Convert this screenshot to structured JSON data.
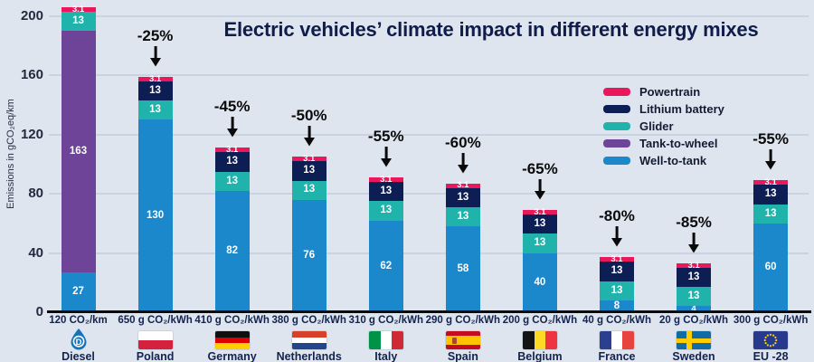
{
  "title": "Electric vehicles’ climate impact in different energy mixes",
  "y_axis": {
    "label": "Emissions in gCO₂eq/km",
    "ticks": [
      0,
      40,
      80,
      120,
      160,
      200
    ]
  },
  "colors": {
    "Powertrain": "#e9175c",
    "Lithium battery": "#0d1e55",
    "Glider": "#1fb3ab",
    "Tank-to-wheel": "#6d4497",
    "Well-to-tank": "#1a88ca"
  },
  "legend": [
    {
      "key": "Powertrain",
      "label": "Powertrain"
    },
    {
      "key": "Lithium battery",
      "label": "Lithium battery"
    },
    {
      "key": "Glider",
      "label": "Glider"
    },
    {
      "key": "Tank-to-wheel",
      "label": "Tank-to-wheel"
    },
    {
      "key": "Well-to-tank",
      "label": "Well-to-tank"
    }
  ],
  "chart_data": {
    "type": "bar",
    "stacked": true,
    "ylabel": "Emissions in gCO₂eq/km",
    "ylim": [
      0,
      200
    ],
    "grid": true,
    "legend_position": "right",
    "bars": [
      {
        "x_label": "120 CO₂/km",
        "country": "Diesel",
        "flag": "diesel",
        "reduction": null,
        "segments": [
          {
            "name": "Well-to-tank",
            "value": 27
          },
          {
            "name": "Tank-to-wheel",
            "value": 163
          },
          {
            "name": "Glider",
            "value": 13
          },
          {
            "name": "Powertrain",
            "value": 3.1
          }
        ]
      },
      {
        "x_label": "650 g CO₂/kWh",
        "country": "Poland",
        "flag": "poland",
        "reduction": "-25%",
        "segments": [
          {
            "name": "Well-to-tank",
            "value": 130
          },
          {
            "name": "Glider",
            "value": 13
          },
          {
            "name": "Lithium battery",
            "value": 13
          },
          {
            "name": "Powertrain",
            "value": 3.1
          }
        ]
      },
      {
        "x_label": "410 g CO₂/kWh",
        "country": "Germany",
        "flag": "germany",
        "reduction": "-45%",
        "segments": [
          {
            "name": "Well-to-tank",
            "value": 82
          },
          {
            "name": "Glider",
            "value": 13
          },
          {
            "name": "Lithium battery",
            "value": 13
          },
          {
            "name": "Powertrain",
            "value": 3.1
          }
        ]
      },
      {
        "x_label": "380 g CO₂/kWh",
        "country": "Netherlands",
        "flag": "netherlands",
        "reduction": "-50%",
        "segments": [
          {
            "name": "Well-to-tank",
            "value": 76
          },
          {
            "name": "Glider",
            "value": 13
          },
          {
            "name": "Lithium battery",
            "value": 13
          },
          {
            "name": "Powertrain",
            "value": 3.1
          }
        ]
      },
      {
        "x_label": "310 g CO₂/kWh",
        "country": "Italy",
        "flag": "italy",
        "reduction": "-55%",
        "segments": [
          {
            "name": "Well-to-tank",
            "value": 62
          },
          {
            "name": "Glider",
            "value": 13
          },
          {
            "name": "Lithium battery",
            "value": 13
          },
          {
            "name": "Powertrain",
            "value": 3.1
          }
        ]
      },
      {
        "x_label": "290 g CO₂/kWh",
        "country": "Spain",
        "flag": "spain",
        "reduction": "-60%",
        "segments": [
          {
            "name": "Well-to-tank",
            "value": 58
          },
          {
            "name": "Glider",
            "value": 13
          },
          {
            "name": "Lithium battery",
            "value": 13
          },
          {
            "name": "Powertrain",
            "value": 3.1
          }
        ]
      },
      {
        "x_label": "200 g CO₂/kWh",
        "country": "Belgium",
        "flag": "belgium",
        "reduction": "-65%",
        "segments": [
          {
            "name": "Well-to-tank",
            "value": 40
          },
          {
            "name": "Glider",
            "value": 13
          },
          {
            "name": "Lithium battery",
            "value": 13
          },
          {
            "name": "Powertrain",
            "value": 3.1
          }
        ]
      },
      {
        "x_label": "40 g CO₂/kWh",
        "country": "France",
        "flag": "france",
        "reduction": "-80%",
        "segments": [
          {
            "name": "Well-to-tank",
            "value": 8
          },
          {
            "name": "Glider",
            "value": 13
          },
          {
            "name": "Lithium battery",
            "value": 13
          },
          {
            "name": "Powertrain",
            "value": 3.1
          }
        ]
      },
      {
        "x_label": "20 g CO₂/kWh",
        "country": "Sweden",
        "flag": "sweden",
        "reduction": "-85%",
        "segments": [
          {
            "name": "Well-to-tank",
            "value": 4
          },
          {
            "name": "Glider",
            "value": 13
          },
          {
            "name": "Lithium battery",
            "value": 13
          },
          {
            "name": "Powertrain",
            "value": 3.1
          }
        ]
      },
      {
        "x_label": "300 g CO₂/kWh",
        "country": "EU -28",
        "flag": "eu",
        "reduction": "-55%",
        "segments": [
          {
            "name": "Well-to-tank",
            "value": 60
          },
          {
            "name": "Glider",
            "value": 13
          },
          {
            "name": "Lithium battery",
            "value": 13
          },
          {
            "name": "Powertrain",
            "value": 3.1
          }
        ]
      }
    ]
  }
}
